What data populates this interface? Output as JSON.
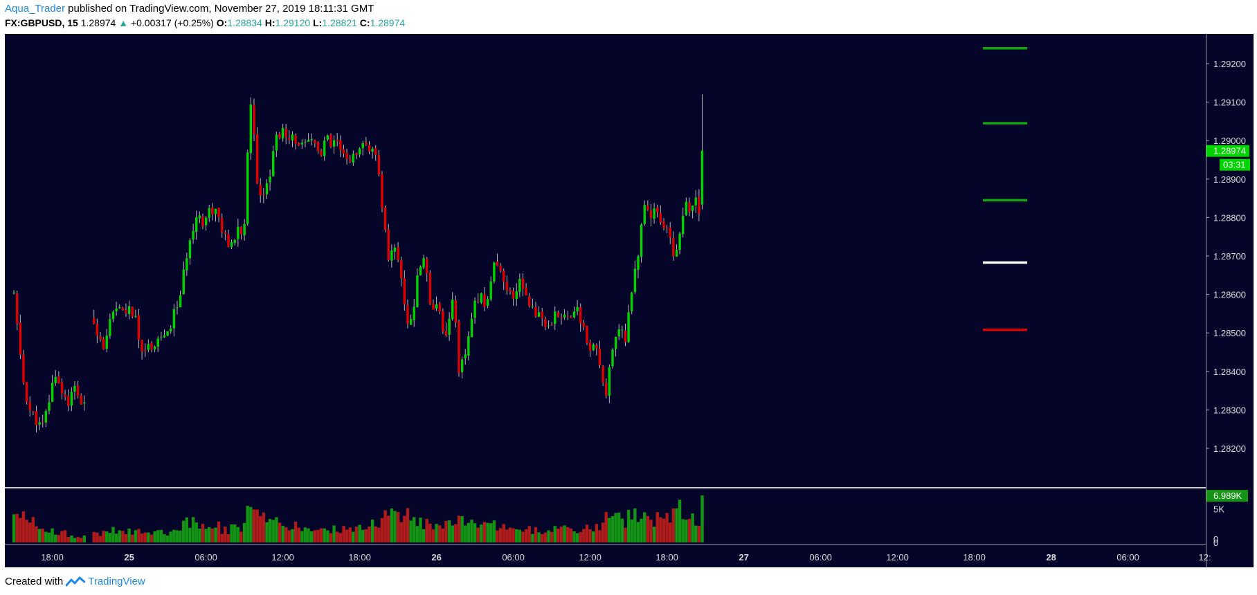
{
  "header": {
    "author": "Aqua_Trader",
    "published_text": "published on TradingView.com, November 27, 2019 18:11:31 GMT",
    "symbol": "FX:GBPUSD, 15",
    "last": "1.28974",
    "change": "+0.00317 (+0.25%)",
    "o_label": "O:",
    "o_val": "1.28834",
    "h_label": "H:",
    "h_val": "1.29120",
    "l_label": "L:",
    "l_val": "1.28821",
    "c_label": "C:",
    "c_val": "1.28974"
  },
  "footer": {
    "created_with": "Created with",
    "brand": "TradingView"
  },
  "colors": {
    "background": "#05052a",
    "up": "#00d400",
    "down": "#e00000",
    "vol_up": "#149414",
    "vol_down": "#b01c1c",
    "wick": "#b8b8b8",
    "level_green": "#13a313",
    "level_white": "#ffffff",
    "level_red": "#e00000"
  },
  "chart_data": {
    "type": "candlestick",
    "symbol": "FX:GBPUSD",
    "interval": "15",
    "price_axis": {
      "ylim": [
        1.2812,
        1.2928
      ],
      "ticks": [
        "1.29200",
        "1.29100",
        "1.29000",
        "1.28900",
        "1.28800",
        "1.28700",
        "1.28600",
        "1.28500",
        "1.28400",
        "1.28300",
        "1.28200"
      ],
      "tick_values": [
        1.292,
        1.291,
        1.29,
        1.289,
        1.288,
        1.287,
        1.286,
        1.285,
        1.284,
        1.283,
        1.282
      ]
    },
    "last_price": {
      "value": 1.28974,
      "label": "1.28974",
      "countdown": "03:31"
    },
    "volume_axis": {
      "ticks": [
        "6.989K",
        "5K",
        "0"
      ],
      "tick_values": [
        6989,
        5000,
        0
      ],
      "max": 7000
    },
    "time_labels": [
      {
        "label": "18:00",
        "hour": 18
      },
      {
        "label": "25",
        "hour": 24,
        "bold": true
      },
      {
        "label": "06:00",
        "hour": 30
      },
      {
        "label": "12:00",
        "hour": 36
      },
      {
        "label": "18:00",
        "hour": 42
      },
      {
        "label": "26",
        "hour": 48,
        "bold": true
      },
      {
        "label": "06:00",
        "hour": 54
      },
      {
        "label": "12:00",
        "hour": 60
      },
      {
        "label": "18:00",
        "hour": 66
      },
      {
        "label": "27",
        "hour": 72,
        "bold": true
      },
      {
        "label": "06:00",
        "hour": 78
      },
      {
        "label": "12:00",
        "hour": 84
      },
      {
        "label": "18:00",
        "hour": 90
      },
      {
        "label": "28",
        "hour": 96,
        "bold": true
      },
      {
        "label": "06:00",
        "hour": 102
      },
      {
        "label": "12:",
        "hour": 108
      }
    ],
    "levels": [
      {
        "price": 1.2924,
        "color": "green"
      },
      {
        "price": 1.29045,
        "color": "green"
      },
      {
        "price": 1.28845,
        "color": "green"
      },
      {
        "price": 1.28683,
        "color": "white"
      },
      {
        "price": 1.28508,
        "color": "red"
      }
    ],
    "path": [
      [
        15.0,
        1.286,
        5.5
      ],
      [
        15.3,
        1.285,
        5.0
      ],
      [
        15.7,
        1.2838,
        4.0
      ],
      [
        16.2,
        1.283,
        3.5
      ],
      [
        16.6,
        1.2828,
        3.0
      ],
      [
        17.2,
        1.2825,
        2.2
      ],
      [
        17.8,
        1.2833,
        2.0
      ],
      [
        18.2,
        1.284,
        1.8
      ],
      [
        18.7,
        1.2835,
        1.6
      ],
      [
        19.3,
        1.2832,
        1.2
      ],
      [
        19.8,
        1.2836,
        1.0
      ],
      [
        20.2,
        1.2832,
        1.0
      ],
      [
        20.6,
        1.283,
        1.2
      ],
      [
        21.1,
        1.2854,
        1.4
      ],
      [
        21.6,
        1.285,
        1.3
      ],
      [
        22.1,
        1.2846,
        1.8
      ],
      [
        22.6,
        1.2854,
        2.0
      ],
      [
        23.2,
        1.2856,
        1.6
      ],
      [
        23.8,
        1.2856,
        1.6
      ],
      [
        24.4,
        1.2855,
        1.8
      ],
      [
        24.8,
        1.2847,
        1.8
      ],
      [
        25.3,
        1.2846,
        1.8
      ],
      [
        25.8,
        1.2847,
        1.8
      ],
      [
        26.4,
        1.2849,
        1.6
      ],
      [
        27.0,
        1.2849,
        1.6
      ],
      [
        27.5,
        1.2855,
        1.8
      ],
      [
        28.0,
        1.286,
        2.4
      ],
      [
        28.4,
        1.2868,
        3.2
      ],
      [
        28.8,
        1.2876,
        3.6
      ],
      [
        29.3,
        1.2881,
        3.6
      ],
      [
        29.8,
        1.2879,
        3.0
      ],
      [
        30.3,
        1.2882,
        2.8
      ],
      [
        30.8,
        1.2882,
        2.8
      ],
      [
        31.3,
        1.2876,
        2.0
      ],
      [
        31.8,
        1.2872,
        2.0
      ],
      [
        32.2,
        1.2873,
        2.2
      ],
      [
        32.6,
        1.288,
        2.2
      ],
      [
        32.9,
        1.287,
        2.4
      ],
      [
        33.4,
        1.291,
        5.5
      ],
      [
        33.8,
        1.2902,
        4.0
      ],
      [
        34.1,
        1.2884,
        4.5
      ],
      [
        34.6,
        1.2888,
        3.5
      ],
      [
        35.0,
        1.2892,
        3.0
      ],
      [
        35.4,
        1.29,
        3.0
      ],
      [
        35.9,
        1.2903,
        2.6
      ],
      [
        36.4,
        1.2899,
        2.4
      ],
      [
        36.9,
        1.2901,
        2.4
      ],
      [
        37.3,
        1.2899,
        2.4
      ],
      [
        37.7,
        1.2898,
        2.2
      ],
      [
        38.2,
        1.29,
        2.2
      ],
      [
        38.6,
        1.2899,
        2.0
      ],
      [
        39.0,
        1.2896,
        2.2
      ],
      [
        39.4,
        1.2901,
        2.2
      ],
      [
        39.8,
        1.2898,
        2.0
      ],
      [
        40.2,
        1.29,
        2.0
      ],
      [
        40.6,
        1.2896,
        2.0
      ],
      [
        41.0,
        1.2895,
        2.2
      ],
      [
        41.4,
        1.2896,
        2.0
      ],
      [
        41.8,
        1.2895,
        2.2
      ],
      [
        42.3,
        1.2899,
        2.4
      ],
      [
        42.8,
        1.2898,
        2.4
      ],
      [
        43.3,
        1.2895,
        3.0
      ],
      [
        43.8,
        1.2882,
        4.0
      ],
      [
        44.3,
        1.2868,
        4.5
      ],
      [
        44.8,
        1.2874,
        4.0
      ],
      [
        45.3,
        1.2862,
        4.5
      ],
      [
        45.8,
        1.2852,
        4.0
      ],
      [
        46.2,
        1.2856,
        3.2
      ],
      [
        46.6,
        1.2866,
        3.0
      ],
      [
        47.0,
        1.287,
        3.2
      ],
      [
        47.3,
        1.2864,
        3.0
      ],
      [
        47.6,
        1.2856,
        3.0
      ],
      [
        48.0,
        1.2858,
        2.8
      ],
      [
        48.3,
        1.2855,
        3.0
      ],
      [
        48.6,
        1.2849,
        3.0
      ],
      [
        49.0,
        1.2853,
        3.2
      ],
      [
        49.4,
        1.2862,
        3.4
      ],
      [
        49.7,
        1.2838,
        5.0
      ],
      [
        50.1,
        1.2843,
        4.0
      ],
      [
        50.5,
        1.2848,
        3.0
      ],
      [
        50.9,
        1.2856,
        2.6
      ],
      [
        51.3,
        1.286,
        2.6
      ],
      [
        51.7,
        1.2858,
        2.4
      ],
      [
        52.1,
        1.286,
        2.4
      ],
      [
        52.5,
        1.2868,
        2.6
      ],
      [
        52.9,
        1.2866,
        2.4
      ],
      [
        53.3,
        1.2862,
        2.4
      ],
      [
        53.7,
        1.286,
        2.2
      ],
      [
        54.1,
        1.2858,
        2.2
      ],
      [
        54.5,
        1.2864,
        2.2
      ],
      [
        54.9,
        1.2861,
        2.0
      ],
      [
        55.3,
        1.2858,
        2.0
      ],
      [
        55.7,
        1.2854,
        2.0
      ],
      [
        56.1,
        1.2856,
        2.0
      ],
      [
        56.5,
        1.2852,
        2.0
      ],
      [
        56.9,
        1.285,
        2.0
      ],
      [
        57.3,
        1.2855,
        2.0
      ],
      [
        57.7,
        1.2854,
        2.0
      ],
      [
        58.1,
        1.2856,
        2.0
      ],
      [
        58.5,
        1.2855,
        1.8
      ],
      [
        58.9,
        1.2856,
        1.8
      ],
      [
        59.3,
        1.2853,
        2.0
      ],
      [
        59.6,
        1.285,
        2.2
      ],
      [
        60.0,
        1.2845,
        2.4
      ],
      [
        60.4,
        1.2846,
        2.4
      ],
      [
        60.8,
        1.2841,
        3.0
      ],
      [
        61.2,
        1.2834,
        3.5
      ],
      [
        61.6,
        1.2842,
        4.0
      ],
      [
        62.0,
        1.2848,
        4.0
      ],
      [
        62.4,
        1.2851,
        3.8
      ],
      [
        62.7,
        1.2847,
        3.6
      ],
      [
        63.1,
        1.2858,
        3.8
      ],
      [
        63.5,
        1.2867,
        4.0
      ],
      [
        63.9,
        1.2874,
        4.2
      ],
      [
        64.3,
        1.2885,
        4.4
      ],
      [
        64.7,
        1.288,
        4.0
      ],
      [
        65.0,
        1.2883,
        3.6
      ],
      [
        65.4,
        1.288,
        3.6
      ],
      [
        65.8,
        1.2878,
        4.0
      ],
      [
        66.2,
        1.2874,
        4.4
      ],
      [
        66.6,
        1.287,
        4.6
      ],
      [
        67.0,
        1.2876,
        5.0
      ],
      [
        67.4,
        1.2884,
        5.2
      ],
      [
        67.8,
        1.288,
        4.4
      ],
      [
        68.2,
        1.2885,
        4.0
      ],
      [
        68.6,
        1.2881,
        3.6
      ],
      [
        68.9,
        1.2884,
        6.989
      ]
    ]
  }
}
